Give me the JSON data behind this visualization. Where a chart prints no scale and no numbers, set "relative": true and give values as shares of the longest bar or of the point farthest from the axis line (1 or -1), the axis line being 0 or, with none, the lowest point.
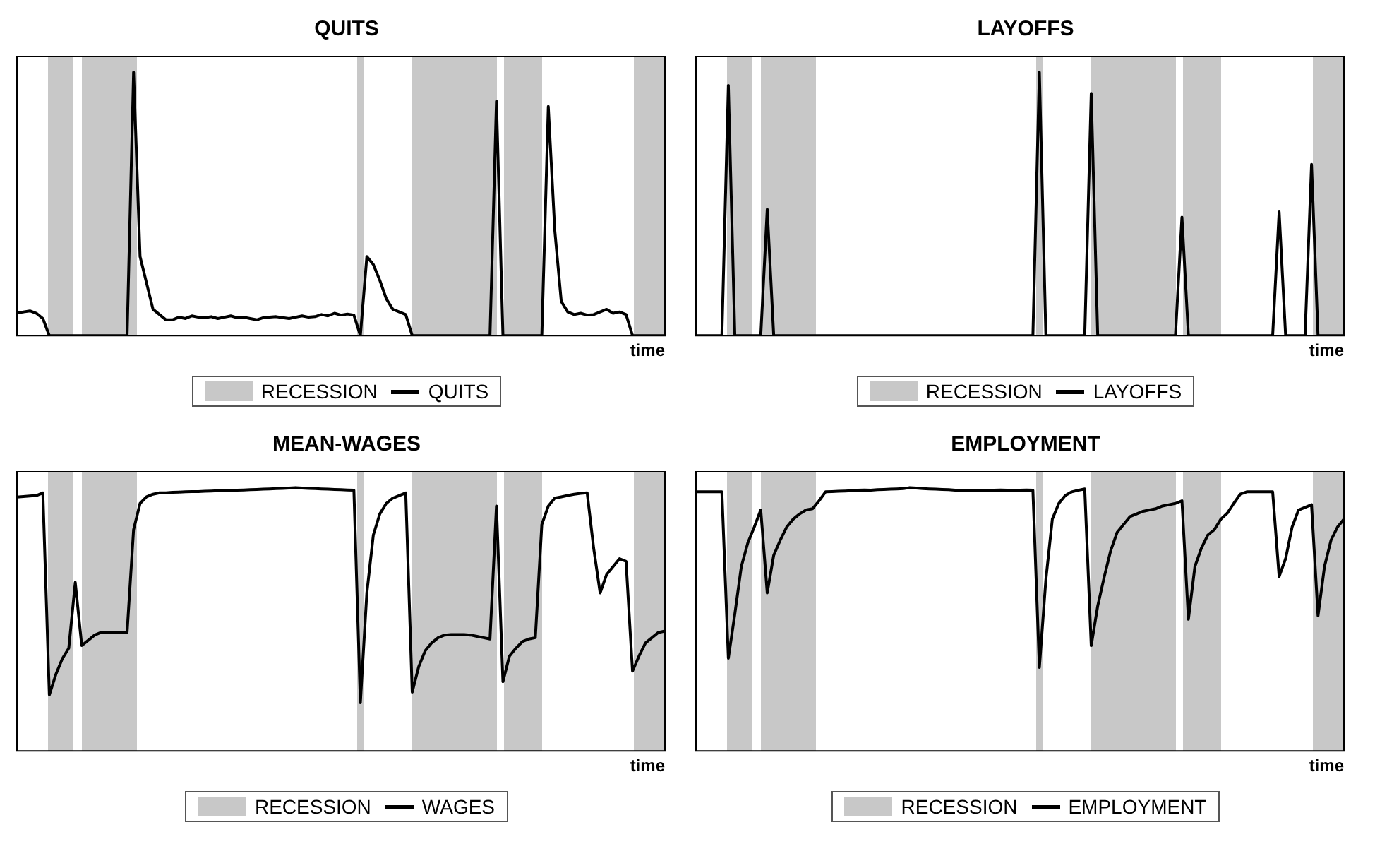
{
  "chart_data": [
    {
      "type": "line",
      "title": "QUITS",
      "xlabel": "time",
      "annotations": [
        "RECESSION"
      ],
      "relative": true,
      "grid": false,
      "legend": "bottom",
      "marker": "none",
      "line_style": "solid",
      "categories": [
        null,
        null,
        null,
        null,
        null,
        null,
        null,
        null,
        null,
        null,
        null,
        null,
        null,
        null,
        null,
        null,
        null,
        null,
        null,
        null,
        null,
        null,
        null,
        null,
        null,
        null,
        null,
        null,
        null,
        null,
        null,
        null,
        null,
        null,
        null,
        null,
        null,
        null,
        null,
        null,
        null,
        null,
        null,
        null,
        null,
        null,
        null,
        null,
        null,
        null,
        null,
        null,
        null,
        null,
        null,
        null,
        null,
        null,
        null,
        null,
        null,
        null,
        null,
        null,
        null,
        null,
        null,
        null,
        null,
        null,
        null,
        null,
        null,
        null,
        null,
        null,
        null,
        null,
        null,
        null,
        null,
        null,
        null,
        null,
        null,
        null,
        null,
        null,
        null,
        null,
        null,
        null,
        null,
        null,
        null,
        null,
        null,
        null,
        null,
        null,
        null
      ],
      "series": [
        {
          "name": "QUITS",
          "color": "#000000",
          "values": [
            0.088,
            0.09,
            0.094,
            0.085,
            0.065,
            0,
            0,
            0,
            0,
            0,
            0,
            0,
            0,
            0,
            0,
            0,
            0,
            0,
            1,
            0.3,
            0.2,
            0.1,
            0.08,
            0.06,
            0.06,
            0.07,
            0.065,
            0.075,
            0.07,
            0.068,
            0.072,
            0.065,
            0.07,
            0.075,
            0.068,
            0.07,
            0.065,
            0.06,
            0.068,
            0.07,
            0.072,
            0.068,
            0.065,
            0.07,
            0.075,
            0.07,
            0.072,
            0.08,
            0.075,
            0.085,
            0.078,
            0.082,
            0.078,
            0,
            0.3,
            0.27,
            0.21,
            0.14,
            0.1,
            0.09,
            0.08,
            0,
            0,
            0,
            0,
            0,
            0,
            0,
            0,
            0,
            0,
            0,
            0,
            0,
            0.89,
            0,
            0,
            0,
            0,
            0,
            0,
            0,
            0.87,
            0.4,
            0.13,
            0.09,
            0.08,
            0.085,
            0.078,
            0.08,
            0.09,
            0.1,
            0.085,
            0.09,
            0.08,
            0,
            0,
            0,
            0,
            0,
            0
          ]
        }
      ]
    },
    {
      "type": "line",
      "title": "LAYOFFS",
      "xlabel": "time",
      "annotations": [
        "RECESSION"
      ],
      "relative": true,
      "grid": false,
      "legend": "bottom",
      "marker": "none",
      "line_style": "solid",
      "categories": [
        null,
        null,
        null,
        null,
        null,
        null,
        null,
        null,
        null,
        null,
        null,
        null,
        null,
        null,
        null,
        null,
        null,
        null,
        null,
        null,
        null,
        null,
        null,
        null,
        null,
        null,
        null,
        null,
        null,
        null,
        null,
        null,
        null,
        null,
        null,
        null,
        null,
        null,
        null,
        null,
        null,
        null,
        null,
        null,
        null,
        null,
        null,
        null,
        null,
        null,
        null,
        null,
        null,
        null,
        null,
        null,
        null,
        null,
        null,
        null,
        null,
        null,
        null,
        null,
        null,
        null,
        null,
        null,
        null,
        null,
        null,
        null,
        null,
        null,
        null,
        null,
        null,
        null,
        null,
        null,
        null,
        null,
        null,
        null,
        null,
        null,
        null,
        null,
        null,
        null,
        null,
        null,
        null,
        null,
        null,
        null,
        null,
        null,
        null,
        null,
        null
      ],
      "series": [
        {
          "name": "LAYOFFS",
          "color": "#000000",
          "values": [
            0,
            0,
            0,
            0,
            0,
            0.95,
            0,
            0,
            0,
            0,
            0,
            0.48,
            0,
            0,
            0,
            0,
            0,
            0,
            0,
            0,
            0,
            0,
            0,
            0,
            0,
            0,
            0,
            0,
            0,
            0,
            0,
            0,
            0,
            0,
            0,
            0,
            0,
            0,
            0,
            0,
            0,
            0,
            0,
            0,
            0,
            0,
            0,
            0,
            0,
            0,
            0,
            0,
            0,
            1,
            0,
            0,
            0,
            0,
            0,
            0,
            0,
            0.92,
            0,
            0,
            0,
            0,
            0,
            0,
            0,
            0,
            0,
            0,
            0,
            0,
            0,
            0.45,
            0,
            0,
            0,
            0,
            0,
            0,
            0,
            0,
            0,
            0,
            0,
            0,
            0,
            0,
            0.47,
            0,
            0,
            0,
            0,
            0.65,
            0,
            0,
            0,
            0,
            0
          ]
        }
      ]
    },
    {
      "type": "line",
      "title": "MEAN-WAGES",
      "xlabel": "time",
      "annotations": [
        "RECESSION"
      ],
      "relative": true,
      "grid": false,
      "legend": "bottom",
      "marker": "none",
      "line_style": "solid",
      "categories": [
        null,
        null,
        null,
        null,
        null,
        null,
        null,
        null,
        null,
        null,
        null,
        null,
        null,
        null,
        null,
        null,
        null,
        null,
        null,
        null,
        null,
        null,
        null,
        null,
        null,
        null,
        null,
        null,
        null,
        null,
        null,
        null,
        null,
        null,
        null,
        null,
        null,
        null,
        null,
        null,
        null,
        null,
        null,
        null,
        null,
        null,
        null,
        null,
        null,
        null,
        null,
        null,
        null,
        null,
        null,
        null,
        null,
        null,
        null,
        null,
        null,
        null,
        null,
        null,
        null,
        null,
        null,
        null,
        null,
        null,
        null,
        null,
        null,
        null,
        null,
        null,
        null,
        null,
        null,
        null,
        null,
        null,
        null,
        null,
        null,
        null,
        null,
        null,
        null,
        null,
        null,
        null,
        null,
        null,
        null,
        null,
        null,
        null,
        null,
        null,
        null
      ],
      "series": [
        {
          "name": "WAGES",
          "color": "#000000",
          "values": [
            0.964,
            0.966,
            0.968,
            0.97,
            0.98,
            0.213,
            0.29,
            0.35,
            0.39,
            0.64,
            0.4,
            0.42,
            0.44,
            0.45,
            0.45,
            0.45,
            0.45,
            0.45,
            0.84,
            0.94,
            0.965,
            0.975,
            0.98,
            0.98,
            0.982,
            0.983,
            0.984,
            0.985,
            0.985,
            0.986,
            0.987,
            0.988,
            0.99,
            0.99,
            0.99,
            0.991,
            0.992,
            0.993,
            0.994,
            0.995,
            0.996,
            0.997,
            0.998,
            1,
            0.998,
            0.997,
            0.996,
            0.995,
            0.994,
            0.993,
            0.992,
            0.991,
            0.99,
            0.183,
            0.6,
            0.82,
            0.9,
            0.94,
            0.96,
            0.97,
            0.98,
            0.223,
            0.32,
            0.38,
            0.41,
            0.43,
            0.44,
            0.442,
            0.442,
            0.442,
            0.44,
            0.435,
            0.43,
            0.425,
            0.93,
            0.263,
            0.36,
            0.39,
            0.415,
            0.425,
            0.43,
            0.86,
            0.93,
            0.96,
            0.965,
            0.97,
            0.975,
            0.978,
            0.98,
            0.77,
            0.6,
            0.67,
            0.7,
            0.73,
            0.72,
            0.303,
            0.36,
            0.41,
            0.43,
            0.45,
            0.455
          ]
        }
      ]
    },
    {
      "type": "line",
      "title": "EMPLOYMENT",
      "xlabel": "time",
      "annotations": [
        "RECESSION"
      ],
      "relative": true,
      "grid": false,
      "legend": "bottom",
      "marker": "none",
      "line_style": "solid",
      "categories": [
        null,
        null,
        null,
        null,
        null,
        null,
        null,
        null,
        null,
        null,
        null,
        null,
        null,
        null,
        null,
        null,
        null,
        null,
        null,
        null,
        null,
        null,
        null,
        null,
        null,
        null,
        null,
        null,
        null,
        null,
        null,
        null,
        null,
        null,
        null,
        null,
        null,
        null,
        null,
        null,
        null,
        null,
        null,
        null,
        null,
        null,
        null,
        null,
        null,
        null,
        null,
        null,
        null,
        null,
        null,
        null,
        null,
        null,
        null,
        null,
        null,
        null,
        null,
        null,
        null,
        null,
        null,
        null,
        null,
        null,
        null,
        null,
        null,
        null,
        null,
        null,
        null,
        null,
        null,
        null,
        null,
        null,
        null,
        null,
        null,
        null,
        null,
        null,
        null,
        null,
        null,
        null,
        null,
        null,
        null,
        null,
        null,
        null,
        null,
        null,
        null
      ],
      "series": [
        {
          "name": "EMPLOYMENT",
          "color": "#000000",
          "values": [
            0.984,
            0.984,
            0.984,
            0.984,
            0.984,
            0.352,
            0.52,
            0.7,
            0.79,
            0.85,
            0.915,
            0.6,
            0.743,
            0.8,
            0.85,
            0.88,
            0.9,
            0.915,
            0.92,
            0.95,
            0.984,
            0.985,
            0.986,
            0.987,
            0.988,
            0.99,
            0.991,
            0.99,
            0.992,
            0.993,
            0.994,
            0.995,
            0.996,
            1,
            0.998,
            0.996,
            0.995,
            0.994,
            0.993,
            0.992,
            0.99,
            0.99,
            0.989,
            0.988,
            0.988,
            0.989,
            0.99,
            0.991,
            0.99,
            0.989,
            0.99,
            0.991,
            0.99,
            0.317,
            0.65,
            0.88,
            0.94,
            0.97,
            0.984,
            0.99,
            0.995,
            0.4,
            0.55,
            0.66,
            0.76,
            0.83,
            0.86,
            0.89,
            0.9,
            0.91,
            0.915,
            0.92,
            0.93,
            0.935,
            0.94,
            0.95,
            0.5,
            0.7,
            0.77,
            0.82,
            0.84,
            0.88,
            0.903,
            0.94,
            0.975,
            0.984,
            0.984,
            0.984,
            0.984,
            0.984,
            0.662,
            0.73,
            0.85,
            0.915,
            0.925,
            0.935,
            0.513,
            0.7,
            0.8,
            0.85,
            0.88
          ]
        }
      ]
    }
  ]
}
